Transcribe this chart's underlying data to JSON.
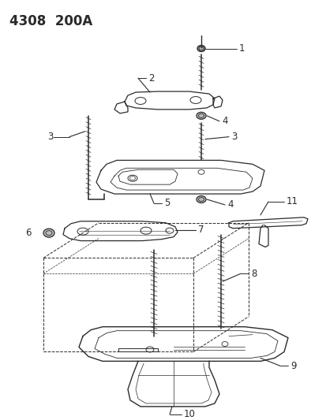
{
  "title": "4308  200A",
  "bg_color": "#ffffff",
  "line_color": "#2a2a2a",
  "title_fontsize": 12,
  "label_fontsize": 8.5
}
